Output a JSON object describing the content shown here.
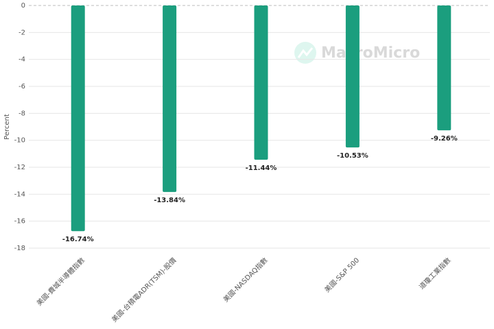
{
  "chart_data": {
    "type": "bar",
    "y_label": "Percent",
    "watermark": "MacroMicro",
    "categories": [
      "美國-費城半導體指數",
      "美國-台積電ADR(TSM)-股價",
      "美國-NASDAQ指數",
      "美國-S&P 500",
      "道瓊工業指數"
    ],
    "values": [
      -16.74,
      -13.84,
      -11.44,
      -10.53,
      -9.26
    ],
    "value_labels": [
      "-16.74%",
      "-13.84%",
      "-11.44%",
      "-10.53%",
      "-9.26%"
    ],
    "color": "#1b9e7e",
    "ylim": [
      -18,
      0
    ],
    "yticks": [
      0,
      -2,
      -4,
      -6,
      -8,
      -10,
      -12,
      -14,
      -16,
      -18
    ],
    "grid": true
  }
}
